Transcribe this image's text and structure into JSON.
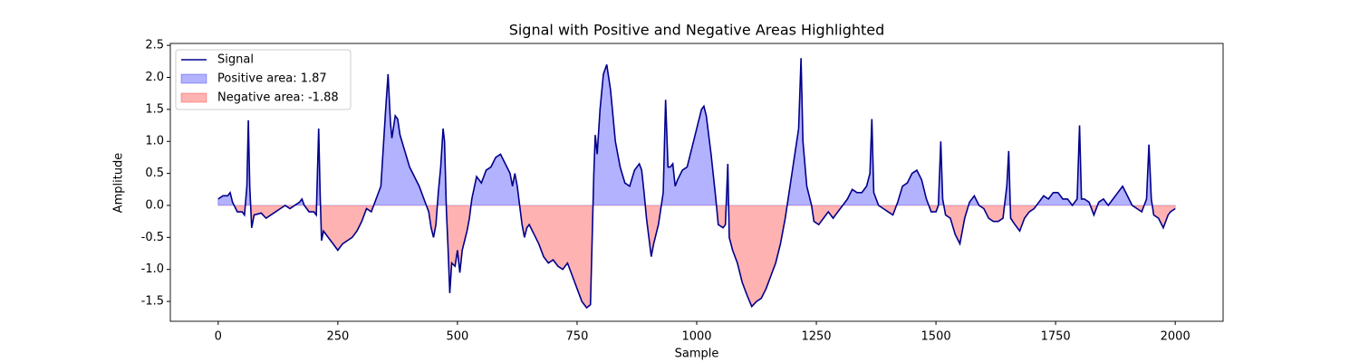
{
  "chart_data": {
    "type": "line",
    "title": "Signal with Positive and Negative Areas Highlighted",
    "xlabel": "Sample",
    "ylabel": "Amplitude",
    "x": [
      0,
      10,
      20,
      25,
      30,
      40,
      50,
      55,
      60,
      63,
      66,
      70,
      75,
      90,
      100,
      110,
      120,
      130,
      140,
      150,
      160,
      170,
      175,
      180,
      190,
      200,
      205,
      210,
      213,
      216,
      220,
      230,
      240,
      250,
      260,
      270,
      280,
      290,
      300,
      310,
      320,
      330,
      340,
      345,
      350,
      355,
      360,
      363,
      370,
      375,
      380,
      390,
      400,
      410,
      420,
      430,
      440,
      445,
      450,
      455,
      460,
      465,
      470,
      473,
      477,
      480,
      484,
      488,
      495,
      500,
      505,
      510,
      515,
      520,
      525,
      530,
      540,
      550,
      560,
      570,
      580,
      590,
      600,
      610,
      615,
      620,
      625,
      630,
      635,
      640,
      645,
      650,
      660,
      670,
      680,
      690,
      700,
      710,
      720,
      730,
      740,
      750,
      760,
      770,
      778,
      785,
      788,
      792,
      798,
      805,
      812,
      820,
      830,
      840,
      850,
      860,
      870,
      880,
      885,
      890,
      895,
      900,
      905,
      910,
      920,
      930,
      935,
      940,
      945,
      950,
      955,
      960,
      970,
      980,
      990,
      1000,
      1010,
      1015,
      1020,
      1030,
      1040,
      1045,
      1055,
      1060,
      1065,
      1068,
      1075,
      1085,
      1095,
      1105,
      1115,
      1125,
      1135,
      1145,
      1155,
      1165,
      1175,
      1185,
      1195,
      1205,
      1213,
      1218,
      1222,
      1230,
      1240,
      1245,
      1255,
      1265,
      1275,
      1285,
      1295,
      1305,
      1315,
      1325,
      1335,
      1345,
      1355,
      1362,
      1366,
      1370,
      1380,
      1390,
      1400,
      1410,
      1420,
      1430,
      1440,
      1450,
      1460,
      1470,
      1480,
      1490,
      1500,
      1505,
      1510,
      1514,
      1520,
      1530,
      1540,
      1550,
      1560,
      1570,
      1580,
      1590,
      1600,
      1610,
      1620,
      1630,
      1640,
      1648,
      1652,
      1656,
      1665,
      1675,
      1685,
      1695,
      1705,
      1715,
      1725,
      1735,
      1745,
      1755,
      1765,
      1775,
      1785,
      1795,
      1800,
      1804,
      1810,
      1820,
      1830,
      1840,
      1850,
      1860,
      1870,
      1880,
      1890,
      1900,
      1910,
      1920,
      1930,
      1940,
      1945,
      1950,
      1955,
      1965,
      1975,
      1985,
      1990,
      2000
    ],
    "series": [
      {
        "name": "Signal",
        "color": "#00008b",
        "values": [
          0.1,
          0.15,
          0.15,
          0.2,
          0.05,
          -0.1,
          -0.1,
          -0.15,
          0.3,
          1.33,
          0.3,
          -0.35,
          -0.15,
          -0.12,
          -0.2,
          -0.15,
          -0.1,
          -0.05,
          0,
          -0.05,
          0,
          0.05,
          0.1,
          0,
          -0.1,
          -0.1,
          -0.15,
          1.2,
          0.2,
          -0.55,
          -0.4,
          -0.5,
          -0.6,
          -0.7,
          -0.6,
          -0.55,
          -0.5,
          -0.4,
          -0.25,
          -0.05,
          -0.1,
          0.1,
          0.3,
          0.9,
          1.5,
          2.05,
          1.3,
          1.05,
          1.4,
          1.35,
          1.1,
          0.85,
          0.6,
          0.45,
          0.3,
          0.1,
          -0.1,
          -0.35,
          -0.5,
          -0.3,
          0.2,
          0.6,
          1.2,
          1.0,
          -0.1,
          -0.6,
          -1.37,
          -0.9,
          -0.95,
          -0.7,
          -1.05,
          -0.7,
          -0.55,
          -0.4,
          -0.2,
          0.1,
          0.45,
          0.35,
          0.55,
          0.6,
          0.75,
          0.8,
          0.65,
          0.5,
          0.3,
          0.5,
          0.3,
          0.0,
          -0.3,
          -0.5,
          -0.35,
          -0.3,
          -0.45,
          -0.6,
          -0.8,
          -0.9,
          -0.85,
          -0.95,
          -1.0,
          -0.9,
          -1.1,
          -1.3,
          -1.5,
          -1.6,
          -1.55,
          0.5,
          1.1,
          0.8,
          1.5,
          2.05,
          2.2,
          1.8,
          1.0,
          0.6,
          0.35,
          0.3,
          0.55,
          0.65,
          0.55,
          0.2,
          -0.2,
          -0.5,
          -0.8,
          -0.6,
          -0.3,
          0.2,
          1.65,
          0.6,
          0.6,
          0.65,
          0.3,
          0.4,
          0.55,
          0.6,
          0.9,
          1.2,
          1.5,
          1.55,
          1.4,
          0.8,
          0.1,
          -0.3,
          -0.35,
          -0.3,
          0.65,
          -0.5,
          -0.7,
          -0.9,
          -1.2,
          -1.4,
          -1.58,
          -1.5,
          -1.45,
          -1.3,
          -1.1,
          -0.9,
          -0.6,
          -0.2,
          0.3,
          0.8,
          1.2,
          2.3,
          1.0,
          0.3,
          0.0,
          -0.25,
          -0.3,
          -0.2,
          -0.1,
          -0.2,
          -0.1,
          0.0,
          0.1,
          0.25,
          0.2,
          0.2,
          0.3,
          0.5,
          1.35,
          0.2,
          0.0,
          -0.05,
          -0.1,
          -0.15,
          0.05,
          0.3,
          0.35,
          0.5,
          0.55,
          0.4,
          0.1,
          -0.1,
          -0.1,
          0.0,
          1.0,
          0.1,
          -0.15,
          -0.2,
          -0.45,
          -0.6,
          -0.2,
          0.05,
          0.15,
          0.0,
          -0.05,
          -0.2,
          -0.25,
          -0.25,
          -0.2,
          0.3,
          0.85,
          -0.2,
          -0.3,
          -0.4,
          -0.2,
          -0.1,
          -0.05,
          0.05,
          0.15,
          0.1,
          0.2,
          0.2,
          0.1,
          0.1,
          0.0,
          0.1,
          1.25,
          0.1,
          0.1,
          0.05,
          -0.15,
          0.05,
          0.1,
          0.0,
          0.1,
          0.2,
          0.3,
          0.15,
          0.0,
          -0.05,
          -0.1,
          0.1,
          0.95,
          0.1,
          -0.15,
          -0.2,
          -0.35,
          -0.15,
          -0.1,
          -0.05
        ]
      }
    ],
    "fills": [
      {
        "name": "Positive area: 1.87",
        "color": "#0000ff",
        "side": "positive"
      },
      {
        "name": "Negative area: -1.88",
        "color": "#ff0000",
        "side": "negative"
      }
    ],
    "fill_opacity": 0.3,
    "xlim": [
      -100,
      2100
    ],
    "xticks": [
      0,
      250,
      500,
      750,
      1000,
      1250,
      1500,
      1750,
      2000
    ],
    "ylim": [
      -1.81,
      2.53
    ],
    "yticks": [
      -1.5,
      {
        "value": -1,
        "label": "-1.0"
      },
      -0.5,
      {
        "value": 0,
        "label": "0.0"
      },
      0.5,
      {
        "value": 1,
        "label": "1.0"
      },
      1.5,
      {
        "value": 2,
        "label": "2.0"
      },
      2.5
    ],
    "legend": "upper left"
  }
}
